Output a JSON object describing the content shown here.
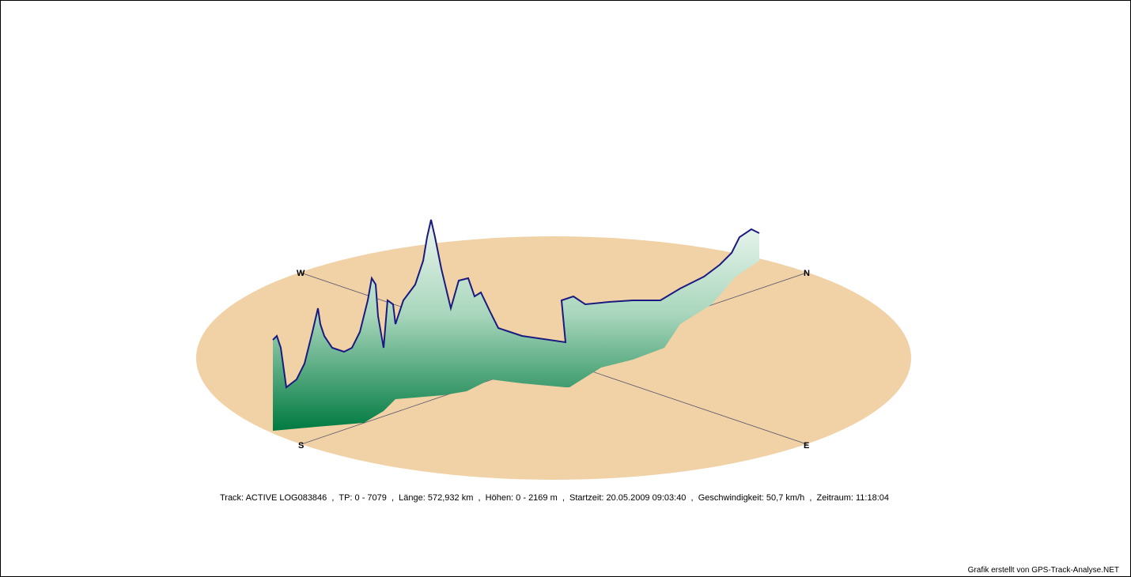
{
  "compass": {
    "west": "W",
    "north": "N",
    "south": "S",
    "east": "E"
  },
  "info": "Track: ACTIVE LOG083846  ,  TP: 0 - 7079  ,  Länge: 572,932 km  ,  Höhen: 0 - 2169 m  ,  Startzeit: 20.05.2009 09:03:40  ,  Geschwindigkeit: 50,7 km/h  ,  Zeitraum: 11:18:04",
  "credit": "Grafik erstellt von GPS-Track-Analyse.NET"
}
